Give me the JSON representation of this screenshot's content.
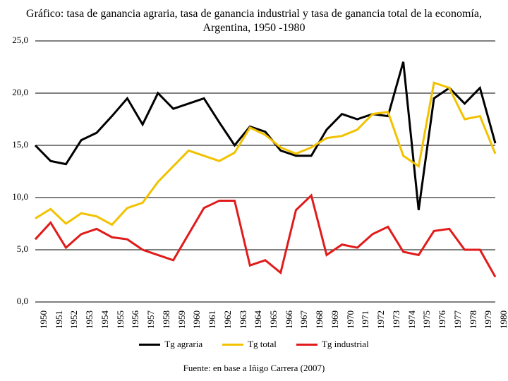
{
  "chart": {
    "type": "line",
    "title": "Gráfico: tasa de ganancia agraria, tasa de ganancia industrial y tasa de ganancia total de la economía, Argentina, 1950 -1980",
    "title_fontsize": 16,
    "background_color": "#ffffff",
    "grid_color": "#000000",
    "text_color": "#000000",
    "ylim": [
      0,
      25
    ],
    "ytick_step": 5,
    "yticks": [
      "0,0",
      "5,0",
      "10,0",
      "15,0",
      "20,0",
      "25,0"
    ],
    "years": [
      1950,
      1951,
      1952,
      1953,
      1954,
      1955,
      1956,
      1957,
      1958,
      1959,
      1960,
      1961,
      1962,
      1963,
      1964,
      1965,
      1966,
      1967,
      1968,
      1969,
      1970,
      1971,
      1972,
      1973,
      1974,
      1975,
      1976,
      1977,
      1978,
      1979,
      1980
    ],
    "series": [
      {
        "name": "Tg agraria",
        "color": "#000000",
        "values": [
          15.0,
          13.5,
          13.2,
          15.5,
          16.2,
          17.8,
          19.5,
          17.0,
          20.0,
          18.5,
          19.0,
          19.5,
          17.2,
          15.0,
          16.8,
          16.3,
          14.5,
          14.0,
          14.0,
          16.5,
          18.0,
          17.5,
          18.0,
          17.8,
          23.0,
          8.8,
          19.5,
          20.5,
          19.0,
          20.5,
          15.2
        ]
      },
      {
        "name": "Tg total",
        "color": "#f2c200",
        "values": [
          8.0,
          8.9,
          7.5,
          8.5,
          8.2,
          7.4,
          9.0,
          9.5,
          11.5,
          13.0,
          14.5,
          14.0,
          13.5,
          14.3,
          16.7,
          16.0,
          14.8,
          14.2,
          14.8,
          15.7,
          15.9,
          16.5,
          18.0,
          18.2,
          14.0,
          13.0,
          21.0,
          20.5,
          17.5,
          17.8,
          14.2
        ]
      },
      {
        "name": "Tg industrial",
        "color": "#e11b1b",
        "values": [
          6.0,
          7.6,
          5.2,
          6.5,
          7.0,
          6.2,
          6.0,
          5.0,
          4.5,
          4.0,
          6.5,
          9.0,
          9.7,
          9.7,
          3.5,
          4.0,
          2.8,
          8.8,
          10.2,
          4.5,
          5.5,
          5.2,
          6.5,
          7.2,
          4.8,
          4.5,
          6.8,
          7.0,
          5.0,
          5.0,
          2.4
        ]
      }
    ],
    "line_width": 3,
    "label_fontsize": 13,
    "source": "Fuente: en base a Iñigo Carrera (2007)",
    "legend": {
      "items": [
        "Tg agraria",
        "Tg total",
        "Tg industrial"
      ]
    }
  }
}
